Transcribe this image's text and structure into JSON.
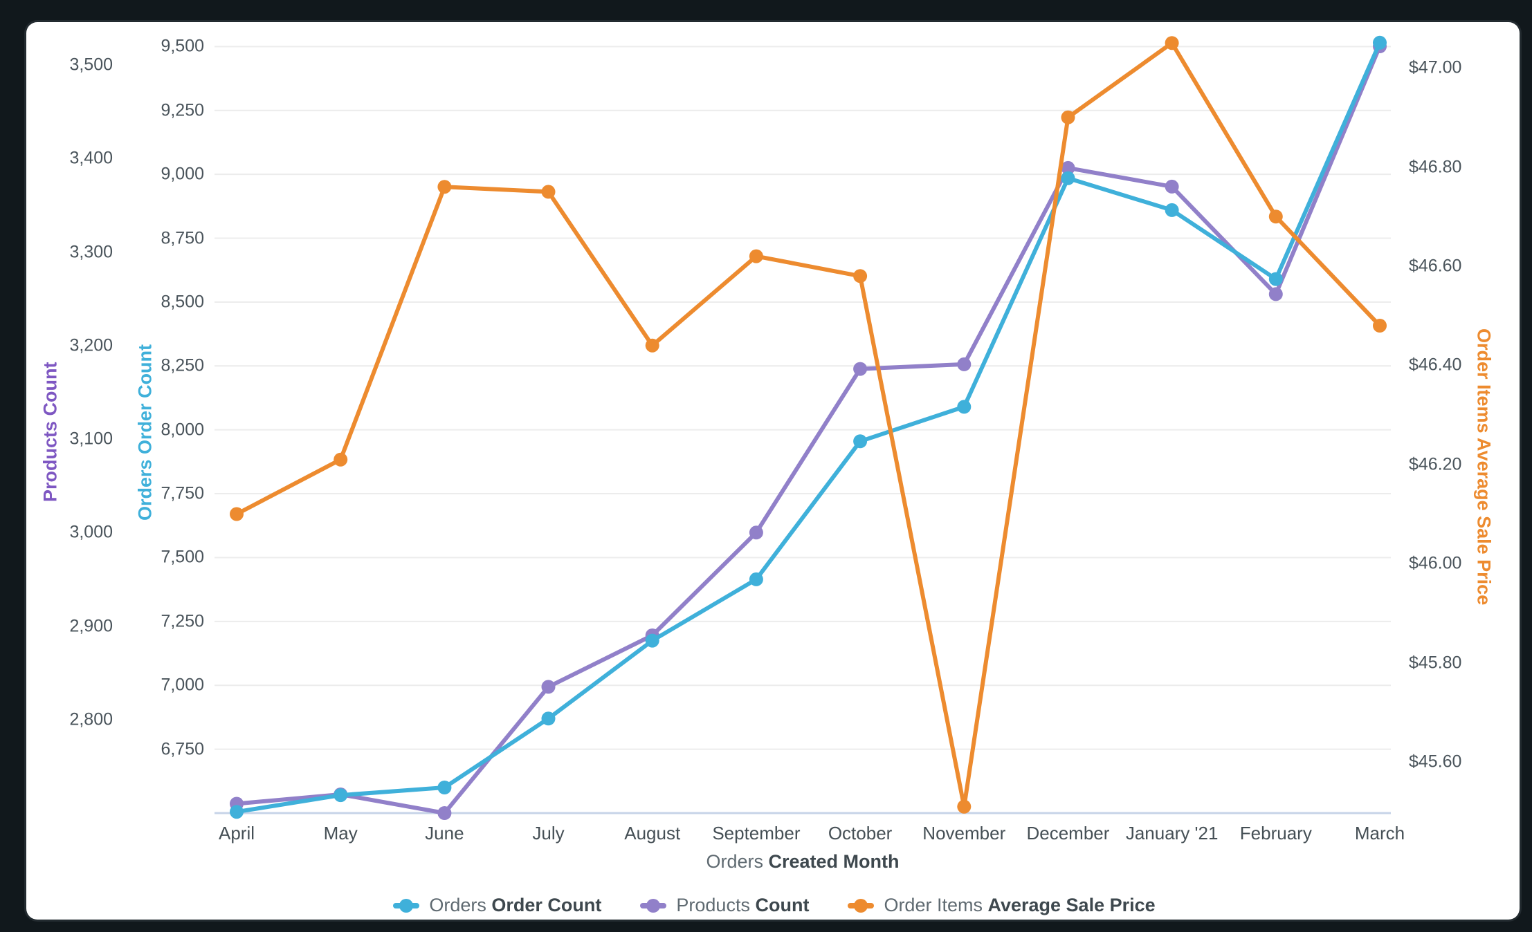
{
  "frame": {
    "background": "#11181c",
    "card_background": "#ffffff"
  },
  "chart_data": {
    "type": "line",
    "categories": [
      "April",
      "May",
      "June",
      "July",
      "August",
      "September",
      "October",
      "November",
      "December",
      "January '21",
      "February",
      "March"
    ],
    "x_axis_title": {
      "regular": "Orders",
      "bold": "Created Month"
    },
    "grid": true,
    "gridline_axis": "orders",
    "legend_position": "bottom-center",
    "axes": {
      "products": {
        "title": "Products Count",
        "color": "#7e57c2",
        "side": "left-outer",
        "min": 2700,
        "max": 3540,
        "ticks": [
          {
            "v": 2800,
            "label": "2,800"
          },
          {
            "v": 2900,
            "label": "2,900"
          },
          {
            "v": 3000,
            "label": "3,000"
          },
          {
            "v": 3100,
            "label": "3,100"
          },
          {
            "v": 3200,
            "label": "3,200"
          },
          {
            "v": 3300,
            "label": "3,300"
          },
          {
            "v": 3400,
            "label": "3,400"
          },
          {
            "v": 3500,
            "label": "3,500"
          }
        ]
      },
      "orders": {
        "title": "Orders Order Count",
        "color": "#3fb0da",
        "side": "left-inner",
        "min": 6500,
        "max": 9574,
        "ticks": [
          {
            "v": 6750,
            "label": "6,750"
          },
          {
            "v": 7000,
            "label": "7,000"
          },
          {
            "v": 7250,
            "label": "7,250"
          },
          {
            "v": 7500,
            "label": "7,500"
          },
          {
            "v": 7750,
            "label": "7,750"
          },
          {
            "v": 8000,
            "label": "8,000"
          },
          {
            "v": 8250,
            "label": "8,250"
          },
          {
            "v": 8500,
            "label": "8,500"
          },
          {
            "v": 8750,
            "label": "8,750"
          },
          {
            "v": 9000,
            "label": "9,000"
          },
          {
            "v": 9250,
            "label": "9,250"
          },
          {
            "v": 9500,
            "label": "9,500"
          }
        ]
      },
      "price": {
        "title": "Order Items Average Sale Price",
        "color": "#ed8b2f",
        "side": "right",
        "min": 45.497,
        "max": 47.081,
        "ticks": [
          {
            "v": 45.6,
            "label": "$45.60"
          },
          {
            "v": 45.8,
            "label": "$45.80"
          },
          {
            "v": 46.0,
            "label": "$46.00"
          },
          {
            "v": 46.2,
            "label": "$46.20"
          },
          {
            "v": 46.4,
            "label": "$46.40"
          },
          {
            "v": 46.6,
            "label": "$46.60"
          },
          {
            "v": 46.8,
            "label": "$46.80"
          },
          {
            "v": 47.0,
            "label": "$47.00"
          }
        ]
      }
    },
    "series": [
      {
        "id": "orders",
        "name_regular": "Orders",
        "name_bold": "Order Count",
        "axis": "orders",
        "color": "#3fb0da",
        "values": [
          6505,
          6570,
          6600,
          6870,
          7175,
          7415,
          7955,
          8090,
          8985,
          8860,
          8590,
          9515
        ]
      },
      {
        "id": "products",
        "name_regular": "Products",
        "name_bold": "Count",
        "axis": "products",
        "color": "#9180c9",
        "values": [
          2710,
          2720,
          2700,
          2835,
          2890,
          3000,
          3175,
          3180,
          3390,
          3370,
          3255,
          3520
        ]
      },
      {
        "id": "price",
        "name_regular": "Order Items",
        "name_bold": "Average Sale Price",
        "axis": "price",
        "color": "#ed8b2f",
        "values": [
          46.1,
          46.21,
          46.76,
          46.75,
          46.44,
          46.62,
          46.58,
          45.51,
          46.9,
          47.05,
          46.7,
          46.48
        ]
      }
    ],
    "style": {
      "gridline_color": "#ececec",
      "baseline_color": "#c7d4e8",
      "tick_text_color": "#4a545b",
      "legend_text_color": "#5f6a71",
      "legend_bold_color": "#3e484e"
    }
  }
}
